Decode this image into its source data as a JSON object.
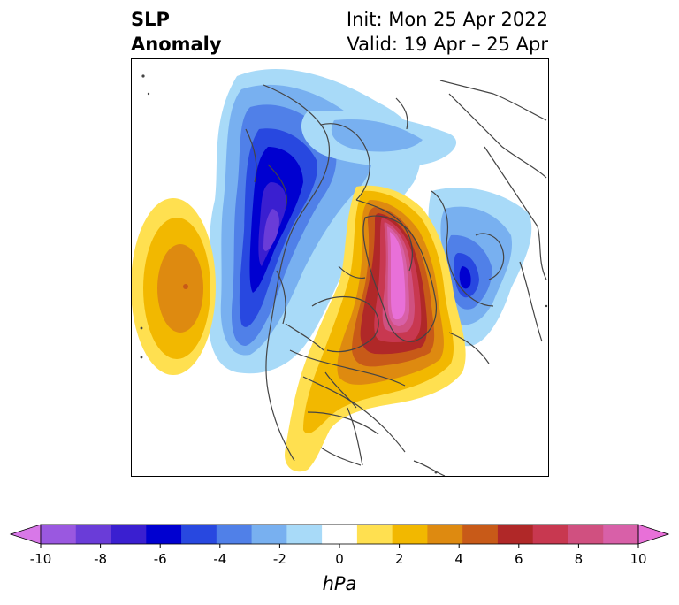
{
  "title": {
    "variable_line1": "SLP",
    "variable_line2": "Anomaly",
    "init": "Init: Mon 25 Apr 2022",
    "valid": "Valid: 19 Apr – 25 Apr"
  },
  "colorbar": {
    "unit": "hPa",
    "tick_labels": [
      "-10",
      "-8",
      "-6",
      "-4",
      "-2",
      "0",
      "2",
      "4",
      "6",
      "8",
      "10"
    ],
    "colors": [
      "#d878e8",
      "#9a58e0",
      "#6a3cd8",
      "#3a1fd0",
      "#0000d0",
      "#2848e0",
      "#5080e8",
      "#78b0f0",
      "#a8daf8",
      "#ffffff",
      "#ffe050",
      "#f2b800",
      "#de8a10",
      "#c85a18",
      "#b02828",
      "#c83850",
      "#d05080",
      "#d860a8",
      "#e870d8"
    ]
  },
  "map": {
    "projection": "north-polar-stereographic",
    "region": "North America / Arctic",
    "features": [
      {
        "name": "positive-anomaly-greenland-baffin",
        "level": 10
      },
      {
        "name": "negative-anomaly-alaska-bering",
        "level": -10
      },
      {
        "name": "negative-anomaly-scandinavia",
        "level": -8
      },
      {
        "name": "positive-anomaly-north-pacific",
        "level": 6
      }
    ]
  }
}
